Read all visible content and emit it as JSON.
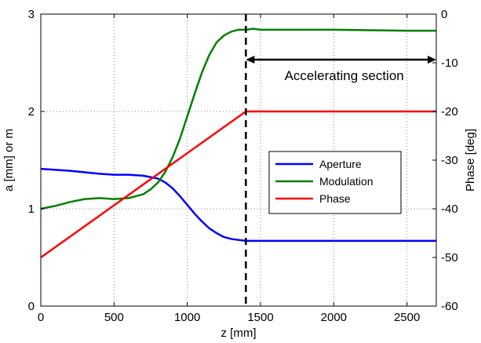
{
  "chart_data": {
    "type": "line",
    "xlabel": "z [mm]",
    "ylabel_left": "a [mm] or m",
    "ylabel_right": "Phase [deg]",
    "xlim": [
      0,
      2700
    ],
    "ylim_left": [
      0,
      3
    ],
    "ylim_right": [
      -60,
      0
    ],
    "grid": true,
    "legend_position": "center-right",
    "x_ticks": [
      "0",
      "500",
      "1000",
      "1500",
      "2000",
      "2500"
    ],
    "y_left_ticks": [
      "0",
      "1",
      "2",
      "3"
    ],
    "y_right_ticks": [
      "0",
      "-10",
      "-20",
      "-30",
      "-40",
      "-50",
      "-60"
    ],
    "series": [
      {
        "name": "Aperture",
        "axis": "left",
        "color": "#0000ff",
        "x": [
          0,
          200,
          400,
          500,
          600,
          700,
          800,
          850,
          900,
          950,
          1000,
          1050,
          1100,
          1150,
          1200,
          1250,
          1300,
          1350,
          1400,
          1500,
          2000,
          2500,
          2700
        ],
        "y": [
          1.41,
          1.39,
          1.36,
          1.35,
          1.35,
          1.34,
          1.31,
          1.27,
          1.21,
          1.13,
          1.04,
          0.95,
          0.87,
          0.8,
          0.75,
          0.71,
          0.69,
          0.68,
          0.67,
          0.67,
          0.67,
          0.67,
          0.67
        ]
      },
      {
        "name": "Modulation",
        "axis": "left",
        "color": "#008000",
        "x": [
          0,
          100,
          200,
          300,
          400,
          500,
          600,
          700,
          750,
          800,
          850,
          900,
          950,
          1000,
          1050,
          1100,
          1150,
          1200,
          1250,
          1300,
          1350,
          1400,
          1450,
          1500,
          2000,
          2500,
          2700
        ],
        "y": [
          1.0,
          1.03,
          1.07,
          1.1,
          1.11,
          1.1,
          1.11,
          1.15,
          1.2,
          1.27,
          1.38,
          1.53,
          1.72,
          1.95,
          2.18,
          2.4,
          2.58,
          2.71,
          2.78,
          2.82,
          2.84,
          2.84,
          2.85,
          2.84,
          2.84,
          2.83,
          2.83
        ]
      },
      {
        "name": "Phase",
        "axis": "right",
        "color": "#ff0000",
        "x": [
          0,
          1400,
          1500,
          2000,
          2500,
          2700
        ],
        "y": [
          -50,
          -20,
          -20,
          -20,
          -20,
          -20
        ]
      }
    ],
    "annotations": [
      {
        "text": "Accelerating section",
        "x_from": 1400,
        "x_to": 2700
      }
    ],
    "marker_line_x": 1400
  }
}
